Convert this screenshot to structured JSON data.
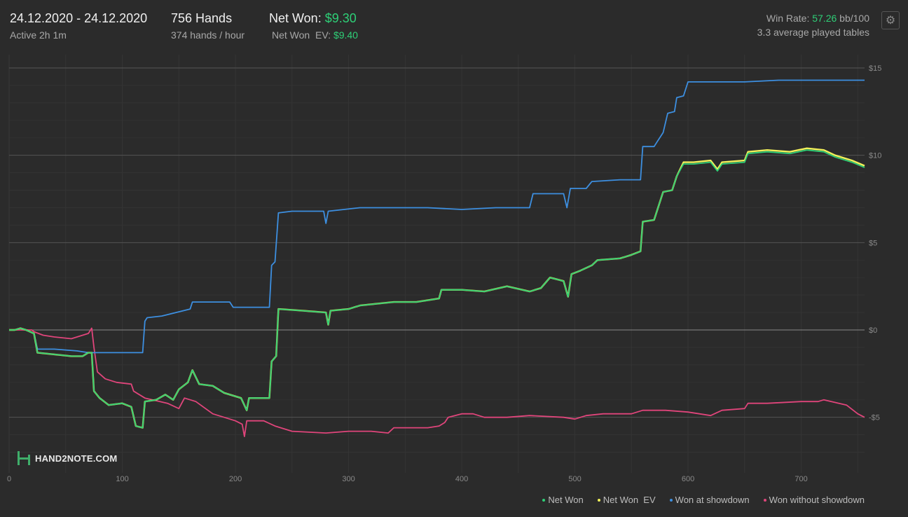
{
  "header": {
    "date_range": "24.12.2020 - 24.12.2020",
    "active": "Active 2h 1m",
    "hands": "756 Hands",
    "hands_per_hour": "374 hands / hour",
    "net_won_label": "Net Won:",
    "net_won_value": "$9.30",
    "net_won_ev_label": "Net Won  EV:",
    "net_won_ev_value": "$9.40",
    "win_rate_label": "Win Rate:",
    "win_rate_value": "57.26",
    "win_rate_unit": "bb/100",
    "avg_tables": "3.3 average played tables"
  },
  "icons": {
    "settings": "gear-icon",
    "logo": "hand2note-logo"
  },
  "logo_text": "HAND2NOTE.COM",
  "colors": {
    "net_won": "#2ecf77",
    "net_won_ev": "#f1f15a",
    "showdown": "#3d8fe0",
    "non_showdown": "#e0457b",
    "background": "#2b2b2b",
    "accent_green": "#2ecf77"
  },
  "legend": [
    {
      "label": "Net Won",
      "color": "#2ecf77"
    },
    {
      "label": "Net Won  EV",
      "color": "#f1f15a"
    },
    {
      "label": "Won at showdown",
      "color": "#3d8fe0"
    },
    {
      "label": "Won without showdown",
      "color": "#e0457b"
    }
  ],
  "chart_data": {
    "type": "line",
    "title": "",
    "xlabel": "",
    "ylabel": "",
    "xlim": [
      0,
      756
    ],
    "ylim": [
      -7,
      16
    ],
    "x_ticks": [
      0,
      100,
      200,
      300,
      400,
      500,
      600,
      700
    ],
    "x_tick_labels": [
      "0",
      "100",
      "200",
      "300",
      "400",
      "500",
      "600",
      "700"
    ],
    "y_ticks": [
      15,
      10,
      5,
      0,
      -5
    ],
    "y_tick_labels": [
      "$15",
      "$10",
      "$5",
      "$0",
      "-$5"
    ],
    "grid": true,
    "legend_position": "bottom-right",
    "series": [
      {
        "name": "Net Won",
        "color": "#2ecf77",
        "points": [
          [
            0,
            0
          ],
          [
            5,
            0
          ],
          [
            10,
            0.1
          ],
          [
            15,
            0
          ],
          [
            22,
            -0.2
          ],
          [
            25,
            -1.3
          ],
          [
            40,
            -1.4
          ],
          [
            55,
            -1.5
          ],
          [
            65,
            -1.5
          ],
          [
            70,
            -1.3
          ],
          [
            73,
            -1.3
          ],
          [
            75,
            -3.5
          ],
          [
            80,
            -3.9
          ],
          [
            88,
            -4.3
          ],
          [
            100,
            -4.2
          ],
          [
            108,
            -4.4
          ],
          [
            112,
            -5.5
          ],
          [
            118,
            -5.6
          ],
          [
            120,
            -4.1
          ],
          [
            130,
            -4.0
          ],
          [
            138,
            -3.7
          ],
          [
            145,
            -4.0
          ],
          [
            150,
            -3.4
          ],
          [
            158,
            -3.0
          ],
          [
            162,
            -2.3
          ],
          [
            168,
            -3.1
          ],
          [
            180,
            -3.2
          ],
          [
            190,
            -3.6
          ],
          [
            205,
            -3.9
          ],
          [
            210,
            -4.6
          ],
          [
            212,
            -3.9
          ],
          [
            230,
            -3.9
          ],
          [
            232,
            -1.8
          ],
          [
            236,
            -1.5
          ],
          [
            238,
            1.2
          ],
          [
            260,
            1.1
          ],
          [
            280,
            1.0
          ],
          [
            282,
            0.3
          ],
          [
            284,
            1.1
          ],
          [
            300,
            1.2
          ],
          [
            310,
            1.4
          ],
          [
            325,
            1.5
          ],
          [
            340,
            1.6
          ],
          [
            360,
            1.6
          ],
          [
            380,
            1.8
          ],
          [
            382,
            2.3
          ],
          [
            400,
            2.3
          ],
          [
            420,
            2.2
          ],
          [
            440,
            2.5
          ],
          [
            460,
            2.2
          ],
          [
            470,
            2.4
          ],
          [
            478,
            3.0
          ],
          [
            490,
            2.8
          ],
          [
            494,
            1.9
          ],
          [
            497,
            3.2
          ],
          [
            505,
            3.4
          ],
          [
            515,
            3.7
          ],
          [
            520,
            4.0
          ],
          [
            540,
            4.1
          ],
          [
            550,
            4.3
          ],
          [
            558,
            4.5
          ],
          [
            560,
            6.2
          ],
          [
            570,
            6.3
          ],
          [
            578,
            7.9
          ],
          [
            586,
            8.0
          ],
          [
            590,
            8.8
          ],
          [
            596,
            9.5
          ],
          [
            605,
            9.5
          ],
          [
            620,
            9.6
          ],
          [
            626,
            9.1
          ],
          [
            630,
            9.5
          ],
          [
            650,
            9.6
          ],
          [
            653,
            10.1
          ],
          [
            670,
            10.2
          ],
          [
            690,
            10.1
          ],
          [
            705,
            10.3
          ],
          [
            720,
            10.2
          ],
          [
            730,
            9.9
          ],
          [
            745,
            9.6
          ],
          [
            756,
            9.3
          ]
        ]
      },
      {
        "name": "Net Won  EV",
        "color": "#f1f15a",
        "points": [
          [
            0,
            0
          ],
          [
            5,
            0
          ],
          [
            10,
            0.1
          ],
          [
            15,
            0
          ],
          [
            22,
            -0.2
          ],
          [
            25,
            -1.3
          ],
          [
            40,
            -1.4
          ],
          [
            55,
            -1.5
          ],
          [
            65,
            -1.5
          ],
          [
            70,
            -1.3
          ],
          [
            73,
            -1.3
          ],
          [
            75,
            -3.5
          ],
          [
            80,
            -3.9
          ],
          [
            88,
            -4.3
          ],
          [
            100,
            -4.2
          ],
          [
            108,
            -4.4
          ],
          [
            112,
            -5.5
          ],
          [
            118,
            -5.6
          ],
          [
            120,
            -4.1
          ],
          [
            130,
            -4.0
          ],
          [
            138,
            -3.7
          ],
          [
            145,
            -4.0
          ],
          [
            150,
            -3.4
          ],
          [
            158,
            -3.0
          ],
          [
            162,
            -2.3
          ],
          [
            168,
            -3.1
          ],
          [
            180,
            -3.2
          ],
          [
            190,
            -3.6
          ],
          [
            205,
            -3.9
          ],
          [
            210,
            -4.6
          ],
          [
            212,
            -3.9
          ],
          [
            230,
            -3.9
          ],
          [
            232,
            -1.8
          ],
          [
            236,
            -1.5
          ],
          [
            238,
            1.2
          ],
          [
            260,
            1.1
          ],
          [
            280,
            1.0
          ],
          [
            282,
            0.3
          ],
          [
            284,
            1.1
          ],
          [
            300,
            1.2
          ],
          [
            310,
            1.4
          ],
          [
            325,
            1.5
          ],
          [
            340,
            1.6
          ],
          [
            360,
            1.6
          ],
          [
            380,
            1.8
          ],
          [
            382,
            2.3
          ],
          [
            400,
            2.3
          ],
          [
            420,
            2.2
          ],
          [
            440,
            2.5
          ],
          [
            460,
            2.2
          ],
          [
            470,
            2.4
          ],
          [
            478,
            3.0
          ],
          [
            490,
            2.8
          ],
          [
            494,
            1.9
          ],
          [
            497,
            3.2
          ],
          [
            505,
            3.4
          ],
          [
            515,
            3.7
          ],
          [
            520,
            4.0
          ],
          [
            540,
            4.1
          ],
          [
            550,
            4.3
          ],
          [
            558,
            4.5
          ],
          [
            560,
            6.2
          ],
          [
            570,
            6.3
          ],
          [
            578,
            7.9
          ],
          [
            586,
            8.0
          ],
          [
            590,
            8.8
          ],
          [
            596,
            9.6
          ],
          [
            605,
            9.6
          ],
          [
            620,
            9.7
          ],
          [
            626,
            9.2
          ],
          [
            630,
            9.6
          ],
          [
            650,
            9.7
          ],
          [
            653,
            10.2
          ],
          [
            670,
            10.3
          ],
          [
            690,
            10.2
          ],
          [
            705,
            10.4
          ],
          [
            720,
            10.3
          ],
          [
            730,
            10.0
          ],
          [
            745,
            9.7
          ],
          [
            756,
            9.4
          ]
        ]
      },
      {
        "name": "Won at showdown",
        "color": "#3d8fe0",
        "points": [
          [
            0,
            0
          ],
          [
            5,
            0
          ],
          [
            10,
            0.1
          ],
          [
            15,
            0
          ],
          [
            22,
            -0.2
          ],
          [
            25,
            -1.1
          ],
          [
            40,
            -1.1
          ],
          [
            60,
            -1.2
          ],
          [
            70,
            -1.3
          ],
          [
            90,
            -1.3
          ],
          [
            110,
            -1.3
          ],
          [
            118,
            -1.3
          ],
          [
            120,
            0.5
          ],
          [
            122,
            0.7
          ],
          [
            135,
            0.8
          ],
          [
            160,
            1.2
          ],
          [
            162,
            1.6
          ],
          [
            195,
            1.6
          ],
          [
            198,
            1.3
          ],
          [
            230,
            1.3
          ],
          [
            232,
            3.7
          ],
          [
            235,
            3.9
          ],
          [
            238,
            6.7
          ],
          [
            250,
            6.8
          ],
          [
            278,
            6.8
          ],
          [
            280,
            6.1
          ],
          [
            282,
            6.8
          ],
          [
            310,
            7.0
          ],
          [
            340,
            7.0
          ],
          [
            370,
            7.0
          ],
          [
            400,
            6.9
          ],
          [
            430,
            7.0
          ],
          [
            460,
            7.0
          ],
          [
            463,
            7.8
          ],
          [
            490,
            7.8
          ],
          [
            493,
            7.0
          ],
          [
            496,
            8.1
          ],
          [
            510,
            8.1
          ],
          [
            515,
            8.5
          ],
          [
            540,
            8.6
          ],
          [
            558,
            8.6
          ],
          [
            560,
            10.5
          ],
          [
            570,
            10.5
          ],
          [
            573,
            10.8
          ],
          [
            578,
            11.3
          ],
          [
            582,
            12.4
          ],
          [
            588,
            12.5
          ],
          [
            590,
            13.3
          ],
          [
            596,
            13.4
          ],
          [
            600,
            14.2
          ],
          [
            620,
            14.2
          ],
          [
            650,
            14.2
          ],
          [
            680,
            14.3
          ],
          [
            700,
            14.3
          ],
          [
            720,
            14.3
          ],
          [
            756,
            14.3
          ]
        ]
      },
      {
        "name": "Won without showdown",
        "color": "#e0457b",
        "points": [
          [
            0,
            0
          ],
          [
            20,
            0
          ],
          [
            22,
            -0.1
          ],
          [
            30,
            -0.3
          ],
          [
            40,
            -0.4
          ],
          [
            55,
            -0.5
          ],
          [
            70,
            -0.2
          ],
          [
            73,
            0.1
          ],
          [
            75,
            -1.0
          ],
          [
            78,
            -2.4
          ],
          [
            85,
            -2.8
          ],
          [
            95,
            -3.0
          ],
          [
            108,
            -3.1
          ],
          [
            110,
            -3.5
          ],
          [
            120,
            -3.9
          ],
          [
            140,
            -4.2
          ],
          [
            150,
            -4.5
          ],
          [
            155,
            -3.9
          ],
          [
            165,
            -4.1
          ],
          [
            180,
            -4.8
          ],
          [
            190,
            -5.0
          ],
          [
            200,
            -5.2
          ],
          [
            206,
            -5.4
          ],
          [
            208,
            -6.1
          ],
          [
            210,
            -5.2
          ],
          [
            225,
            -5.2
          ],
          [
            235,
            -5.5
          ],
          [
            250,
            -5.8
          ],
          [
            280,
            -5.9
          ],
          [
            300,
            -5.8
          ],
          [
            320,
            -5.8
          ],
          [
            335,
            -5.9
          ],
          [
            340,
            -5.6
          ],
          [
            370,
            -5.6
          ],
          [
            380,
            -5.5
          ],
          [
            385,
            -5.3
          ],
          [
            388,
            -5.0
          ],
          [
            400,
            -4.8
          ],
          [
            410,
            -4.8
          ],
          [
            420,
            -5.0
          ],
          [
            440,
            -5.0
          ],
          [
            460,
            -4.9
          ],
          [
            490,
            -5.0
          ],
          [
            500,
            -5.1
          ],
          [
            510,
            -4.9
          ],
          [
            525,
            -4.8
          ],
          [
            550,
            -4.8
          ],
          [
            560,
            -4.6
          ],
          [
            580,
            -4.6
          ],
          [
            600,
            -4.7
          ],
          [
            620,
            -4.9
          ],
          [
            630,
            -4.6
          ],
          [
            650,
            -4.5
          ],
          [
            653,
            -4.2
          ],
          [
            670,
            -4.2
          ],
          [
            700,
            -4.1
          ],
          [
            715,
            -4.1
          ],
          [
            720,
            -4.0
          ],
          [
            740,
            -4.3
          ],
          [
            750,
            -4.8
          ],
          [
            756,
            -5.0
          ]
        ]
      }
    ]
  }
}
